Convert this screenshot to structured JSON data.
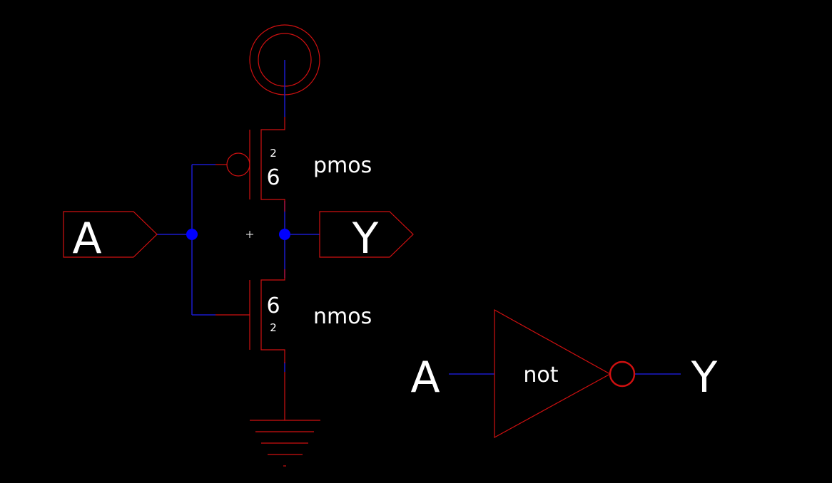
{
  "schematic": {
    "input_pin": {
      "label": "A"
    },
    "output_pin": {
      "label": "Y"
    },
    "pmos": {
      "name": "pmos",
      "width": "6",
      "length": "2"
    },
    "nmos": {
      "name": "nmos",
      "width": "6",
      "length": "2"
    }
  },
  "symbol": {
    "gate_label": "not",
    "input_label": "A",
    "output_label": "Y"
  },
  "colors": {
    "background": "#000000",
    "device": "#d01010",
    "wire": "#1a1acc",
    "node": "#0000ff",
    "text": "#ffffff"
  }
}
